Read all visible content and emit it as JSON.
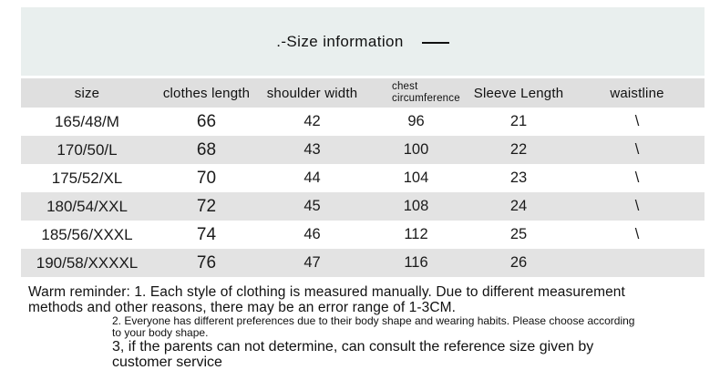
{
  "title": {
    "text": ".-Size information"
  },
  "table": {
    "headers": [
      "size",
      "clothes length",
      "shoulder width",
      "chest\ncircumference",
      "Sleeve Length",
      "waistline"
    ],
    "rows": [
      [
        "165/48/M",
        "66",
        "42",
        "96",
        "21",
        "\\"
      ],
      [
        "170/50/L",
        "68",
        "43",
        "100",
        "22",
        "\\"
      ],
      [
        "175/52/XL",
        "70",
        "44",
        "104",
        "23",
        "\\"
      ],
      [
        "180/54/XXL",
        "72",
        "45",
        "108",
        "24",
        "\\"
      ],
      [
        "185/56/XXXL",
        "74",
        "46",
        "112",
        "25",
        "\\"
      ],
      [
        "190/58/XXXXL",
        "76",
        "47",
        "116",
        "26",
        ""
      ]
    ]
  },
  "footer": {
    "reminder_line1": "Warm reminder: 1. Each style of clothing is measured manually. Due to different measurement",
    "reminder_line2": "methods and other reasons, there may be an error range of 1-3CM.",
    "note2_line1": "2. Everyone has different preferences due to their body shape and wearing habits. Please choose according",
    "note2_line2": "to your body shape.",
    "note3_line1": "3, if the parents can not determine, can consult the reference size given by",
    "note3_line2": "customer service"
  },
  "colors": {
    "title_band_bg": "#e9efee",
    "header_row_bg": "#dfdfdf",
    "stripe_row_bg": "#e3e3e3",
    "text": "#1a1a1a"
  }
}
